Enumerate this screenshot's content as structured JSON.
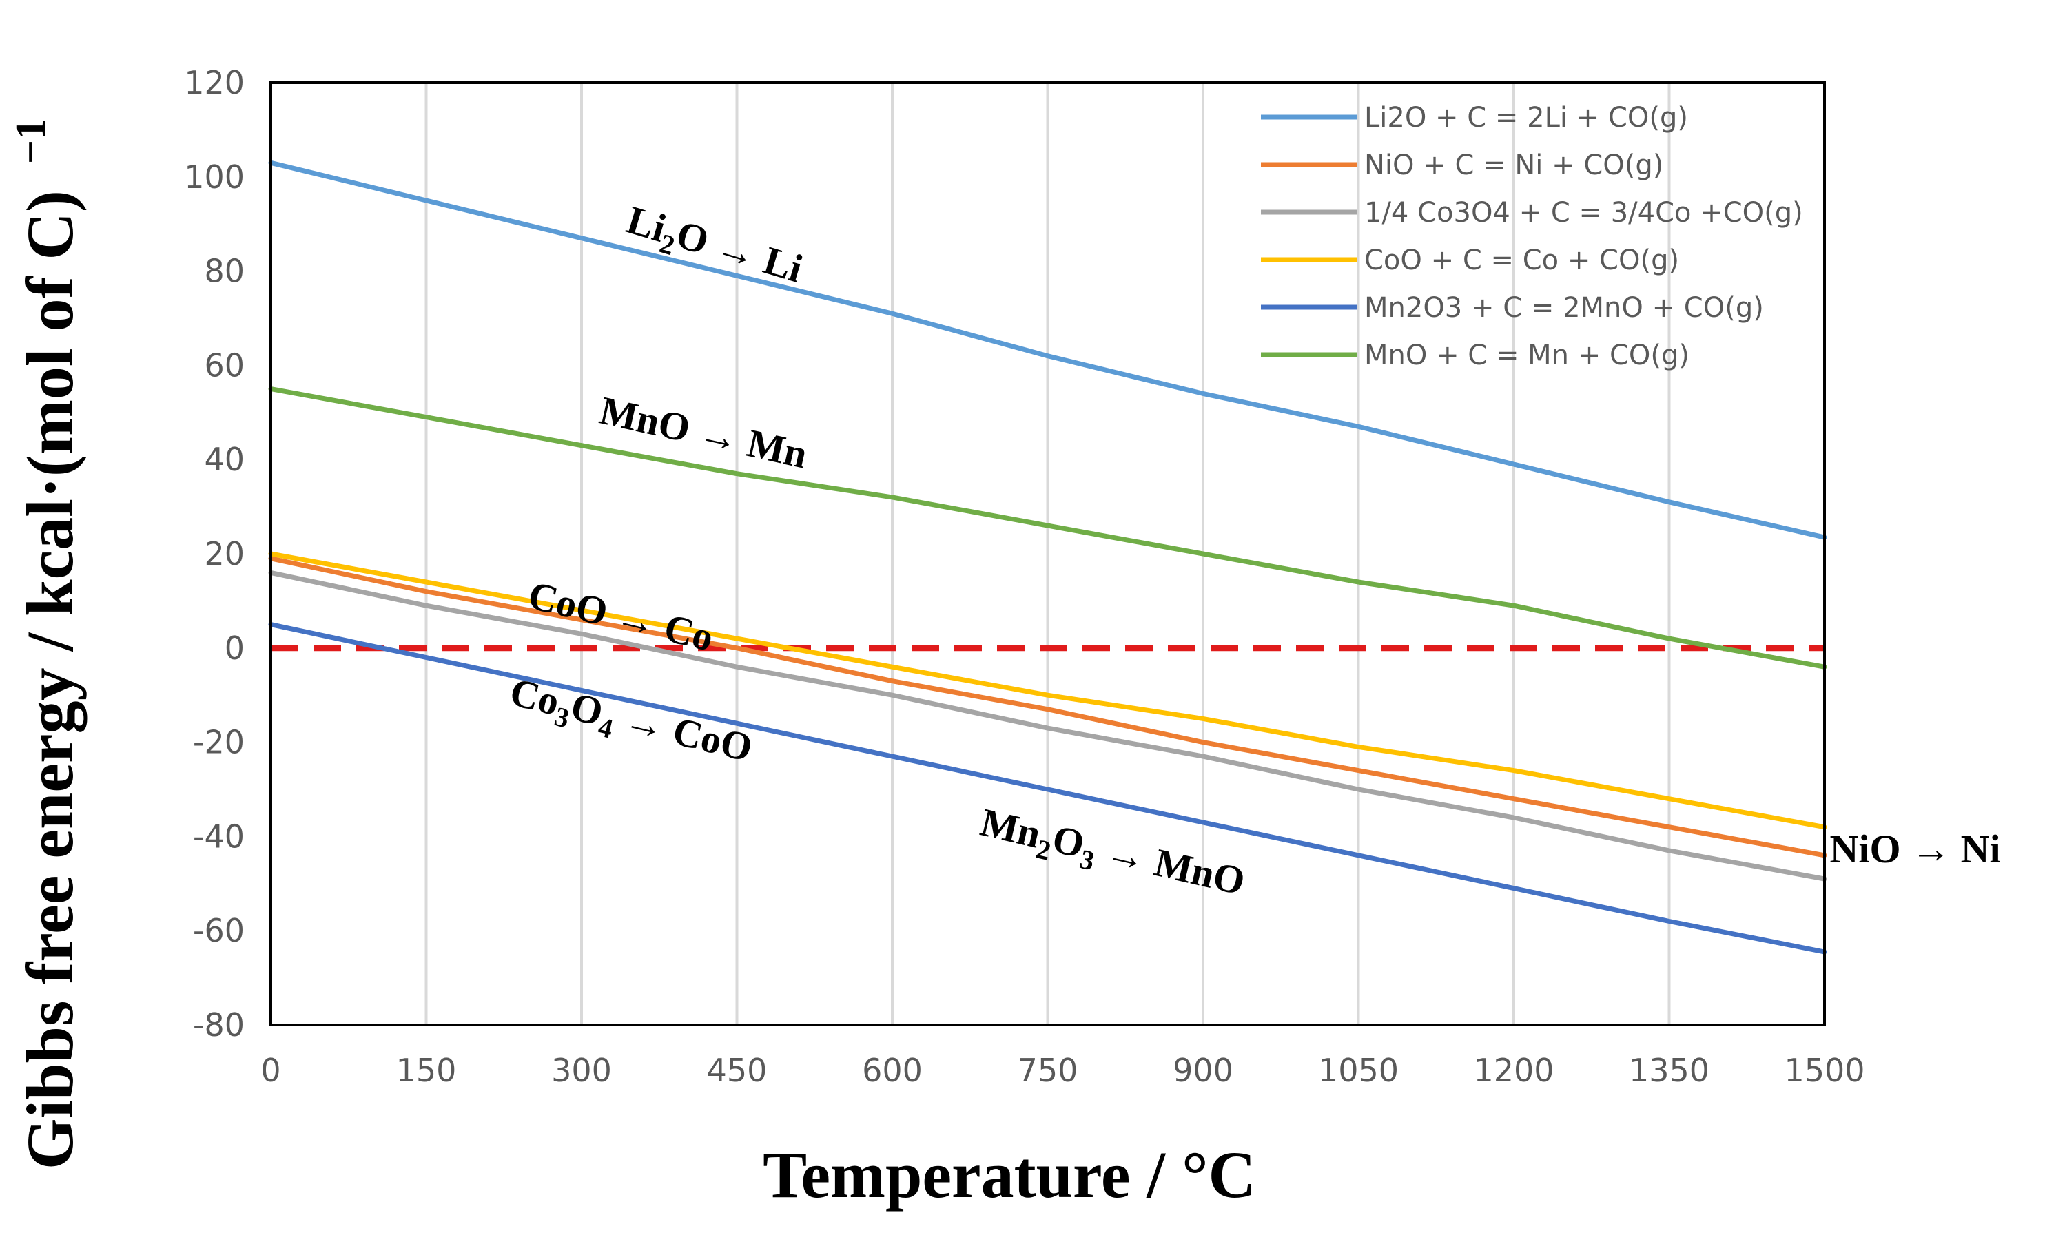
{
  "chart_data": {
    "type": "line",
    "xlabel": "Temperature / °C",
    "ylabel": "Gibbs free energy / kcal·(mol of C)",
    "ylabel_sup": "−1",
    "x_ticks": [
      "0",
      "150",
      "300",
      "450",
      "600",
      "750",
      "900",
      "1050",
      "1200",
      "1350",
      "1500"
    ],
    "y_ticks": [
      "120",
      "100",
      "80",
      "60",
      "40",
      "20",
      "0",
      "-20",
      "-40",
      "-60",
      "-80"
    ],
    "xlim": [
      0,
      1500
    ],
    "ylim": [
      -80,
      120
    ],
    "grid": "vertical",
    "legend_position": "top-right",
    "zero_line": {
      "y": 0,
      "color": "#E01B1B",
      "style": "dashed"
    },
    "series": [
      {
        "name": "Li2O + C = 2Li + CO(g)",
        "color": "#5B9BD5",
        "points": [
          [
            0,
            103
          ],
          [
            150,
            95
          ],
          [
            300,
            87
          ],
          [
            450,
            79
          ],
          [
            600,
            71
          ],
          [
            750,
            62
          ],
          [
            900,
            54
          ],
          [
            1050,
            47
          ],
          [
            1200,
            39
          ],
          [
            1350,
            31
          ],
          [
            1500,
            23.5
          ]
        ]
      },
      {
        "name": "NiO + C = Ni + CO(g)",
        "color": "#ED7D31",
        "points": [
          [
            0,
            19
          ],
          [
            150,
            12
          ],
          [
            300,
            6
          ],
          [
            450,
            0
          ],
          [
            600,
            -7
          ],
          [
            750,
            -13
          ],
          [
            900,
            -20
          ],
          [
            1050,
            -26
          ],
          [
            1200,
            -32
          ],
          [
            1350,
            -38
          ],
          [
            1500,
            -44
          ]
        ]
      },
      {
        "name": "1/4 Co3O4 + C = 3/4Co +CO(g)",
        "color": "#A5A5A5",
        "points": [
          [
            0,
            16
          ],
          [
            150,
            9
          ],
          [
            300,
            3
          ],
          [
            450,
            -4
          ],
          [
            600,
            -10
          ],
          [
            750,
            -17
          ],
          [
            900,
            -23
          ],
          [
            1050,
            -30
          ],
          [
            1200,
            -36
          ],
          [
            1350,
            -43
          ],
          [
            1500,
            -49
          ]
        ]
      },
      {
        "name": "CoO + C = Co + CO(g)",
        "color": "#FFC000",
        "points": [
          [
            0,
            20
          ],
          [
            150,
            14
          ],
          [
            300,
            8
          ],
          [
            450,
            2
          ],
          [
            600,
            -4
          ],
          [
            750,
            -10
          ],
          [
            900,
            -15
          ],
          [
            1050,
            -21
          ],
          [
            1200,
            -26
          ],
          [
            1350,
            -32
          ],
          [
            1500,
            -38
          ]
        ]
      },
      {
        "name": "Mn2O3 + C = 2MnO + CO(g)",
        "color": "#4472C4",
        "points": [
          [
            0,
            5
          ],
          [
            150,
            -2
          ],
          [
            300,
            -9
          ],
          [
            450,
            -16
          ],
          [
            600,
            -23
          ],
          [
            750,
            -30
          ],
          [
            900,
            -37
          ],
          [
            1050,
            -44
          ],
          [
            1200,
            -51
          ],
          [
            1350,
            -58
          ],
          [
            1500,
            -64.5
          ]
        ]
      },
      {
        "name": "MnO + C = Mn + CO(g)",
        "color": "#70AD47",
        "points": [
          [
            0,
            55
          ],
          [
            150,
            49
          ],
          [
            300,
            43
          ],
          [
            450,
            37
          ],
          [
            600,
            32
          ],
          [
            750,
            26
          ],
          [
            900,
            20
          ],
          [
            1050,
            14
          ],
          [
            1200,
            9
          ],
          [
            1350,
            2
          ],
          [
            1500,
            -4
          ]
        ]
      }
    ],
    "annotations": [
      {
        "parts": [
          [
            "Li",
            ""
          ],
          [
            "2",
            "sub"
          ],
          [
            "O → Li",
            ""
          ]
        ],
        "x": 425,
        "y": 83,
        "angle": 16.5,
        "anchor": "middle"
      },
      {
        "parts": [
          [
            "MnO → Mn",
            ""
          ]
        ],
        "x": 415,
        "y": 43,
        "angle": 12.5,
        "anchor": "middle"
      },
      {
        "parts": [
          [
            "CoO → Co",
            ""
          ]
        ],
        "x": 335,
        "y": 4,
        "angle": 13.5,
        "anchor": "middle"
      },
      {
        "parts": [
          [
            "Co",
            ""
          ],
          [
            "3",
            "sub"
          ],
          [
            "O",
            ""
          ],
          [
            "4",
            "sub"
          ],
          [
            " → CoO",
            ""
          ]
        ],
        "x": 345,
        "y": -18,
        "angle": 13.5,
        "anchor": "middle"
      },
      {
        "parts": [
          [
            "Mn",
            ""
          ],
          [
            "2",
            "sub"
          ],
          [
            "O",
            ""
          ],
          [
            "3",
            "sub"
          ],
          [
            " → MnO",
            ""
          ]
        ],
        "x": 810,
        "y": -46,
        "angle": 13,
        "anchor": "middle"
      },
      {
        "parts": [
          [
            "NiO → Ni",
            ""
          ]
        ],
        "x": 1505,
        "y": -45.5,
        "angle": 0,
        "anchor": "start"
      }
    ]
  }
}
